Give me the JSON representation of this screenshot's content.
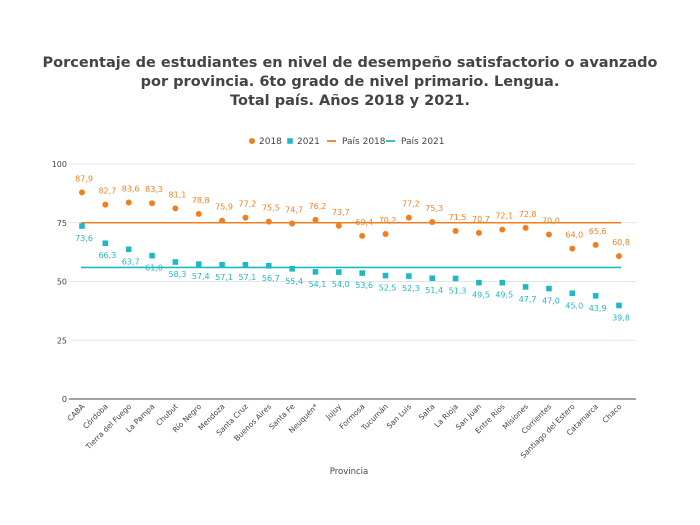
{
  "chart_data": {
    "type": "scatter",
    "title_lines": [
      "Porcentaje de estudiantes en nivel de desempeño satisfactorio o avanzado",
      "por provincia. 6to grado de nivel primario. Lengua.",
      "Total país. Años 2018 y 2021."
    ],
    "xlabel": "Provincia",
    "ylabel": "",
    "ylim": [
      0,
      100
    ],
    "yticks": [
      "0",
      "25",
      "50",
      "75",
      "100"
    ],
    "ytick_values": [
      0,
      25,
      50,
      75,
      100
    ],
    "categories": [
      "CABA",
      "Córdoba",
      "Tierra del Fuego",
      "La Pampa",
      "Chubut",
      "Río Negro",
      "Mendoza",
      "Santa Cruz",
      "Buenos Aires",
      "Santa Fe",
      "Neuquén*",
      "Jujuy",
      "Formosa",
      "Tucumán",
      "San Luis",
      "Salta",
      "La Rioja",
      "San Juan",
      "Entre Ríos",
      "Misiones",
      "Corrientes",
      "Santiago del Estero",
      "Catamarca",
      "Chaco"
    ],
    "series": [
      {
        "name": "2018",
        "color": "#f07f22",
        "marker": "circle",
        "values": [
          87.9,
          82.7,
          83.6,
          83.3,
          81.1,
          78.8,
          75.9,
          77.2,
          75.5,
          74.7,
          76.2,
          73.7,
          69.4,
          70.2,
          77.2,
          75.3,
          71.5,
          70.7,
          72.1,
          72.8,
          70.0,
          64.0,
          65.6,
          60.8
        ],
        "labels": [
          "87,9",
          "82,7",
          "83,6",
          "83,3",
          "81,1",
          "78,8",
          "75,9",
          "77,2",
          "75,5",
          "74,7",
          "76,2",
          "73,7",
          "69,4",
          "70,2",
          "77,2",
          "75,3",
          "71,5",
          "70,7",
          "72,1",
          "72,8",
          "70,0",
          "64,0",
          "65,6",
          "60,8"
        ]
      },
      {
        "name": "2021",
        "color": "#1fb8c4",
        "marker": "square",
        "values": [
          73.6,
          66.3,
          63.7,
          61.0,
          58.3,
          57.4,
          57.1,
          57.1,
          56.7,
          55.4,
          54.1,
          54.0,
          53.6,
          52.5,
          52.3,
          51.4,
          51.3,
          49.5,
          49.5,
          47.7,
          47.0,
          45.0,
          43.9,
          39.8
        ],
        "labels": [
          "73,6",
          "66,3",
          "63,7",
          "61,0",
          "58,3",
          "57,4",
          "57,1",
          "57,1",
          "56,7",
          "55,4",
          "54,1",
          "54,0",
          "53,6",
          "52,5",
          "52,3",
          "51,4",
          "51,3",
          "49,5",
          "49,5",
          "47,7",
          "47,0",
          "45,0",
          "43,9",
          "39,8"
        ]
      }
    ],
    "reference_lines": [
      {
        "name": "País 2018",
        "value": 75.0,
        "color": "#f07f22"
      },
      {
        "name": "País 2021",
        "value": 56.0,
        "color": "#1fb8c4"
      }
    ],
    "legend": [
      {
        "label": "2018",
        "marker": "circle",
        "color": "#f07f22"
      },
      {
        "label": "2021",
        "marker": "square",
        "color": "#1fb8c4"
      },
      {
        "label": "País 2018",
        "marker": "line",
        "color": "#f07f22"
      },
      {
        "label": "País 2021",
        "marker": "line",
        "color": "#1fb8c4"
      }
    ],
    "legend_position": "top-center",
    "grid": true
  }
}
